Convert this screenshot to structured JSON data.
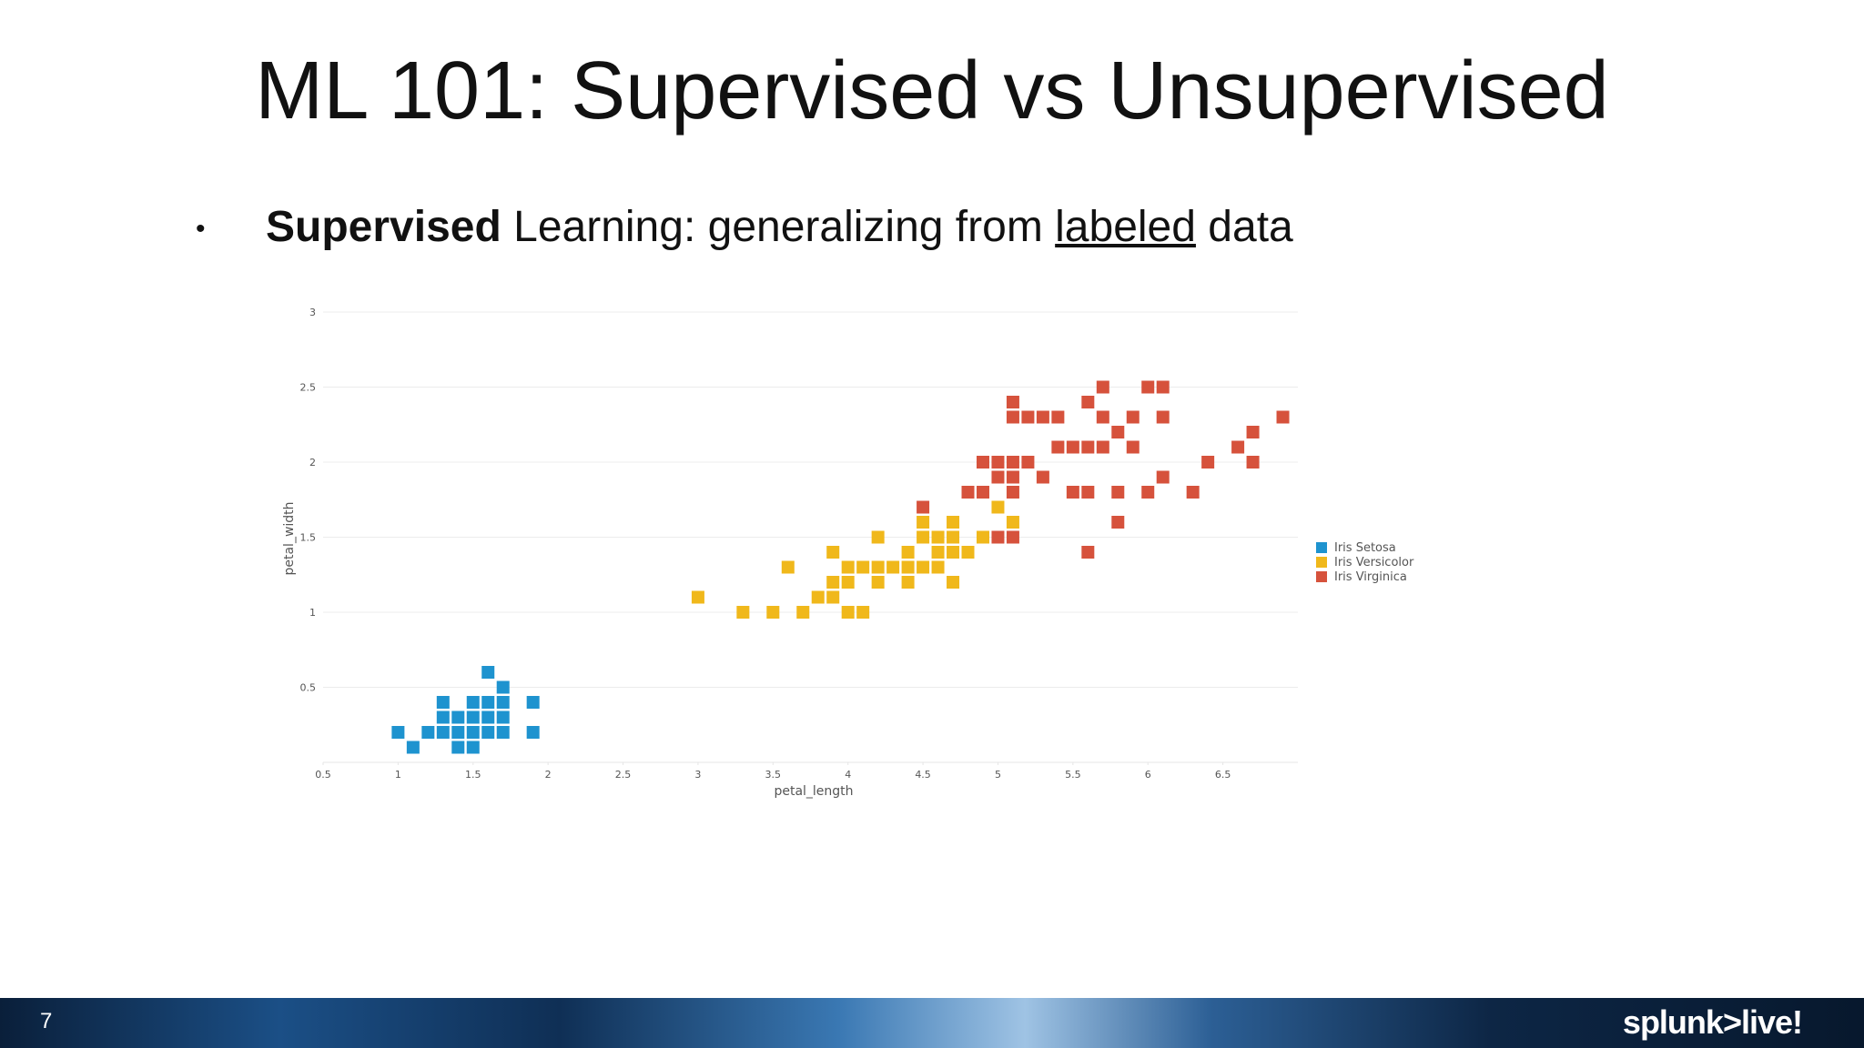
{
  "slide": {
    "title": "ML 101: Supervised vs Unsupervised",
    "bullet": {
      "marker": "•",
      "bold": "Supervised",
      "text": "Learning:  generalizing from",
      "underlined": "labeled",
      "end": "data"
    },
    "page_number": "7",
    "logo": "splunk>live!"
  },
  "chart_data": {
    "type": "scatter",
    "x_label": "petal_length",
    "y_label": "petal_width",
    "xlim": [
      0.5,
      7.0
    ],
    "ylim": [
      0,
      3
    ],
    "xticks": [
      0.5,
      1,
      1.5,
      2,
      2.5,
      3,
      3.5,
      4,
      4.5,
      5,
      5.5,
      6,
      6.5
    ],
    "yticks": [
      0.5,
      1,
      1.5,
      2,
      2.5,
      3
    ],
    "grid": true,
    "legend": "right",
    "series": [
      {
        "name": "Iris Setosa",
        "color": "#1e93cf",
        "x": [
          1.0,
          1.1,
          1.2,
          1.3,
          1.3,
          1.3,
          1.4,
          1.4,
          1.4,
          1.5,
          1.5,
          1.5,
          1.5,
          1.6,
          1.6,
          1.6,
          1.6,
          1.7,
          1.7,
          1.7,
          1.7,
          1.9,
          1.9
        ],
        "values": [
          0.2,
          0.1,
          0.2,
          0.4,
          0.3,
          0.2,
          0.3,
          0.2,
          0.1,
          0.4,
          0.3,
          0.2,
          0.1,
          0.6,
          0.4,
          0.3,
          0.2,
          0.5,
          0.4,
          0.3,
          0.2,
          0.4,
          0.2
        ]
      },
      {
        "name": "Iris Versicolor",
        "color": "#f0b81b",
        "x": [
          3.0,
          3.3,
          3.5,
          3.6,
          3.7,
          3.8,
          3.9,
          3.9,
          3.9,
          4.0,
          4.0,
          4.0,
          4.1,
          4.1,
          4.2,
          4.2,
          4.2,
          4.3,
          4.4,
          4.4,
          4.4,
          4.5,
          4.5,
          4.5,
          4.6,
          4.6,
          4.6,
          4.7,
          4.7,
          4.7,
          4.7,
          4.8,
          4.9,
          5.0,
          5.1
        ],
        "values": [
          1.1,
          1.0,
          1.0,
          1.3,
          1.0,
          1.1,
          1.4,
          1.2,
          1.1,
          1.3,
          1.2,
          1.0,
          1.3,
          1.0,
          1.5,
          1.3,
          1.2,
          1.3,
          1.4,
          1.3,
          1.2,
          1.6,
          1.5,
          1.3,
          1.5,
          1.4,
          1.3,
          1.6,
          1.5,
          1.4,
          1.2,
          1.4,
          1.5,
          1.7,
          1.6
        ]
      },
      {
        "name": "Iris Virginica",
        "color": "#d6523c",
        "x": [
          4.5,
          4.8,
          4.9,
          4.9,
          5.0,
          5.0,
          5.0,
          5.1,
          5.1,
          5.1,
          5.1,
          5.1,
          5.1,
          5.2,
          5.2,
          5.3,
          5.3,
          5.4,
          5.4,
          5.5,
          5.5,
          5.6,
          5.6,
          5.6,
          5.6,
          5.7,
          5.7,
          5.7,
          5.8,
          5.8,
          5.8,
          5.9,
          5.9,
          6.0,
          6.0,
          6.1,
          6.1,
          6.1,
          6.3,
          6.4,
          6.6,
          6.7,
          6.7,
          6.9
        ],
        "values": [
          1.7,
          1.8,
          2.0,
          1.8,
          2.0,
          1.9,
          1.5,
          2.4,
          2.3,
          2.0,
          1.9,
          1.8,
          1.5,
          2.3,
          2.0,
          2.3,
          1.9,
          2.3,
          2.1,
          2.1,
          1.8,
          2.4,
          2.1,
          1.8,
          1.4,
          2.5,
          2.3,
          2.1,
          2.2,
          1.8,
          1.6,
          2.3,
          2.1,
          2.5,
          1.8,
          2.5,
          2.3,
          1.9,
          1.8,
          2.0,
          2.1,
          2.2,
          2.0,
          2.3
        ]
      }
    ]
  }
}
